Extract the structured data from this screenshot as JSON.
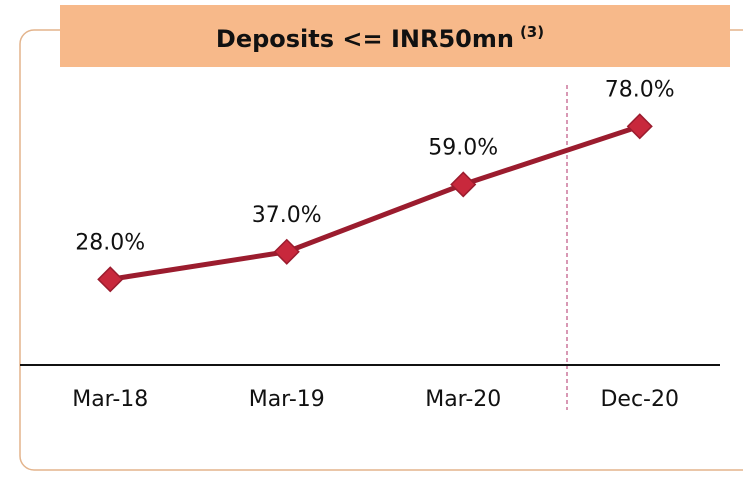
{
  "chart_data": {
    "type": "line",
    "title": "Deposits <= INR50mn",
    "title_note": "(3)",
    "categories": [
      "Mar-18",
      "Mar-19",
      "Mar-20",
      "Dec-20"
    ],
    "values": [
      28,
      37,
      59,
      78
    ],
    "value_labels": [
      "28.0%",
      "37.0%",
      "59.0%",
      "78.0%"
    ],
    "color": "#9b1c2e",
    "marker_color": "#c8283c",
    "ylim": [
      0,
      100
    ]
  }
}
